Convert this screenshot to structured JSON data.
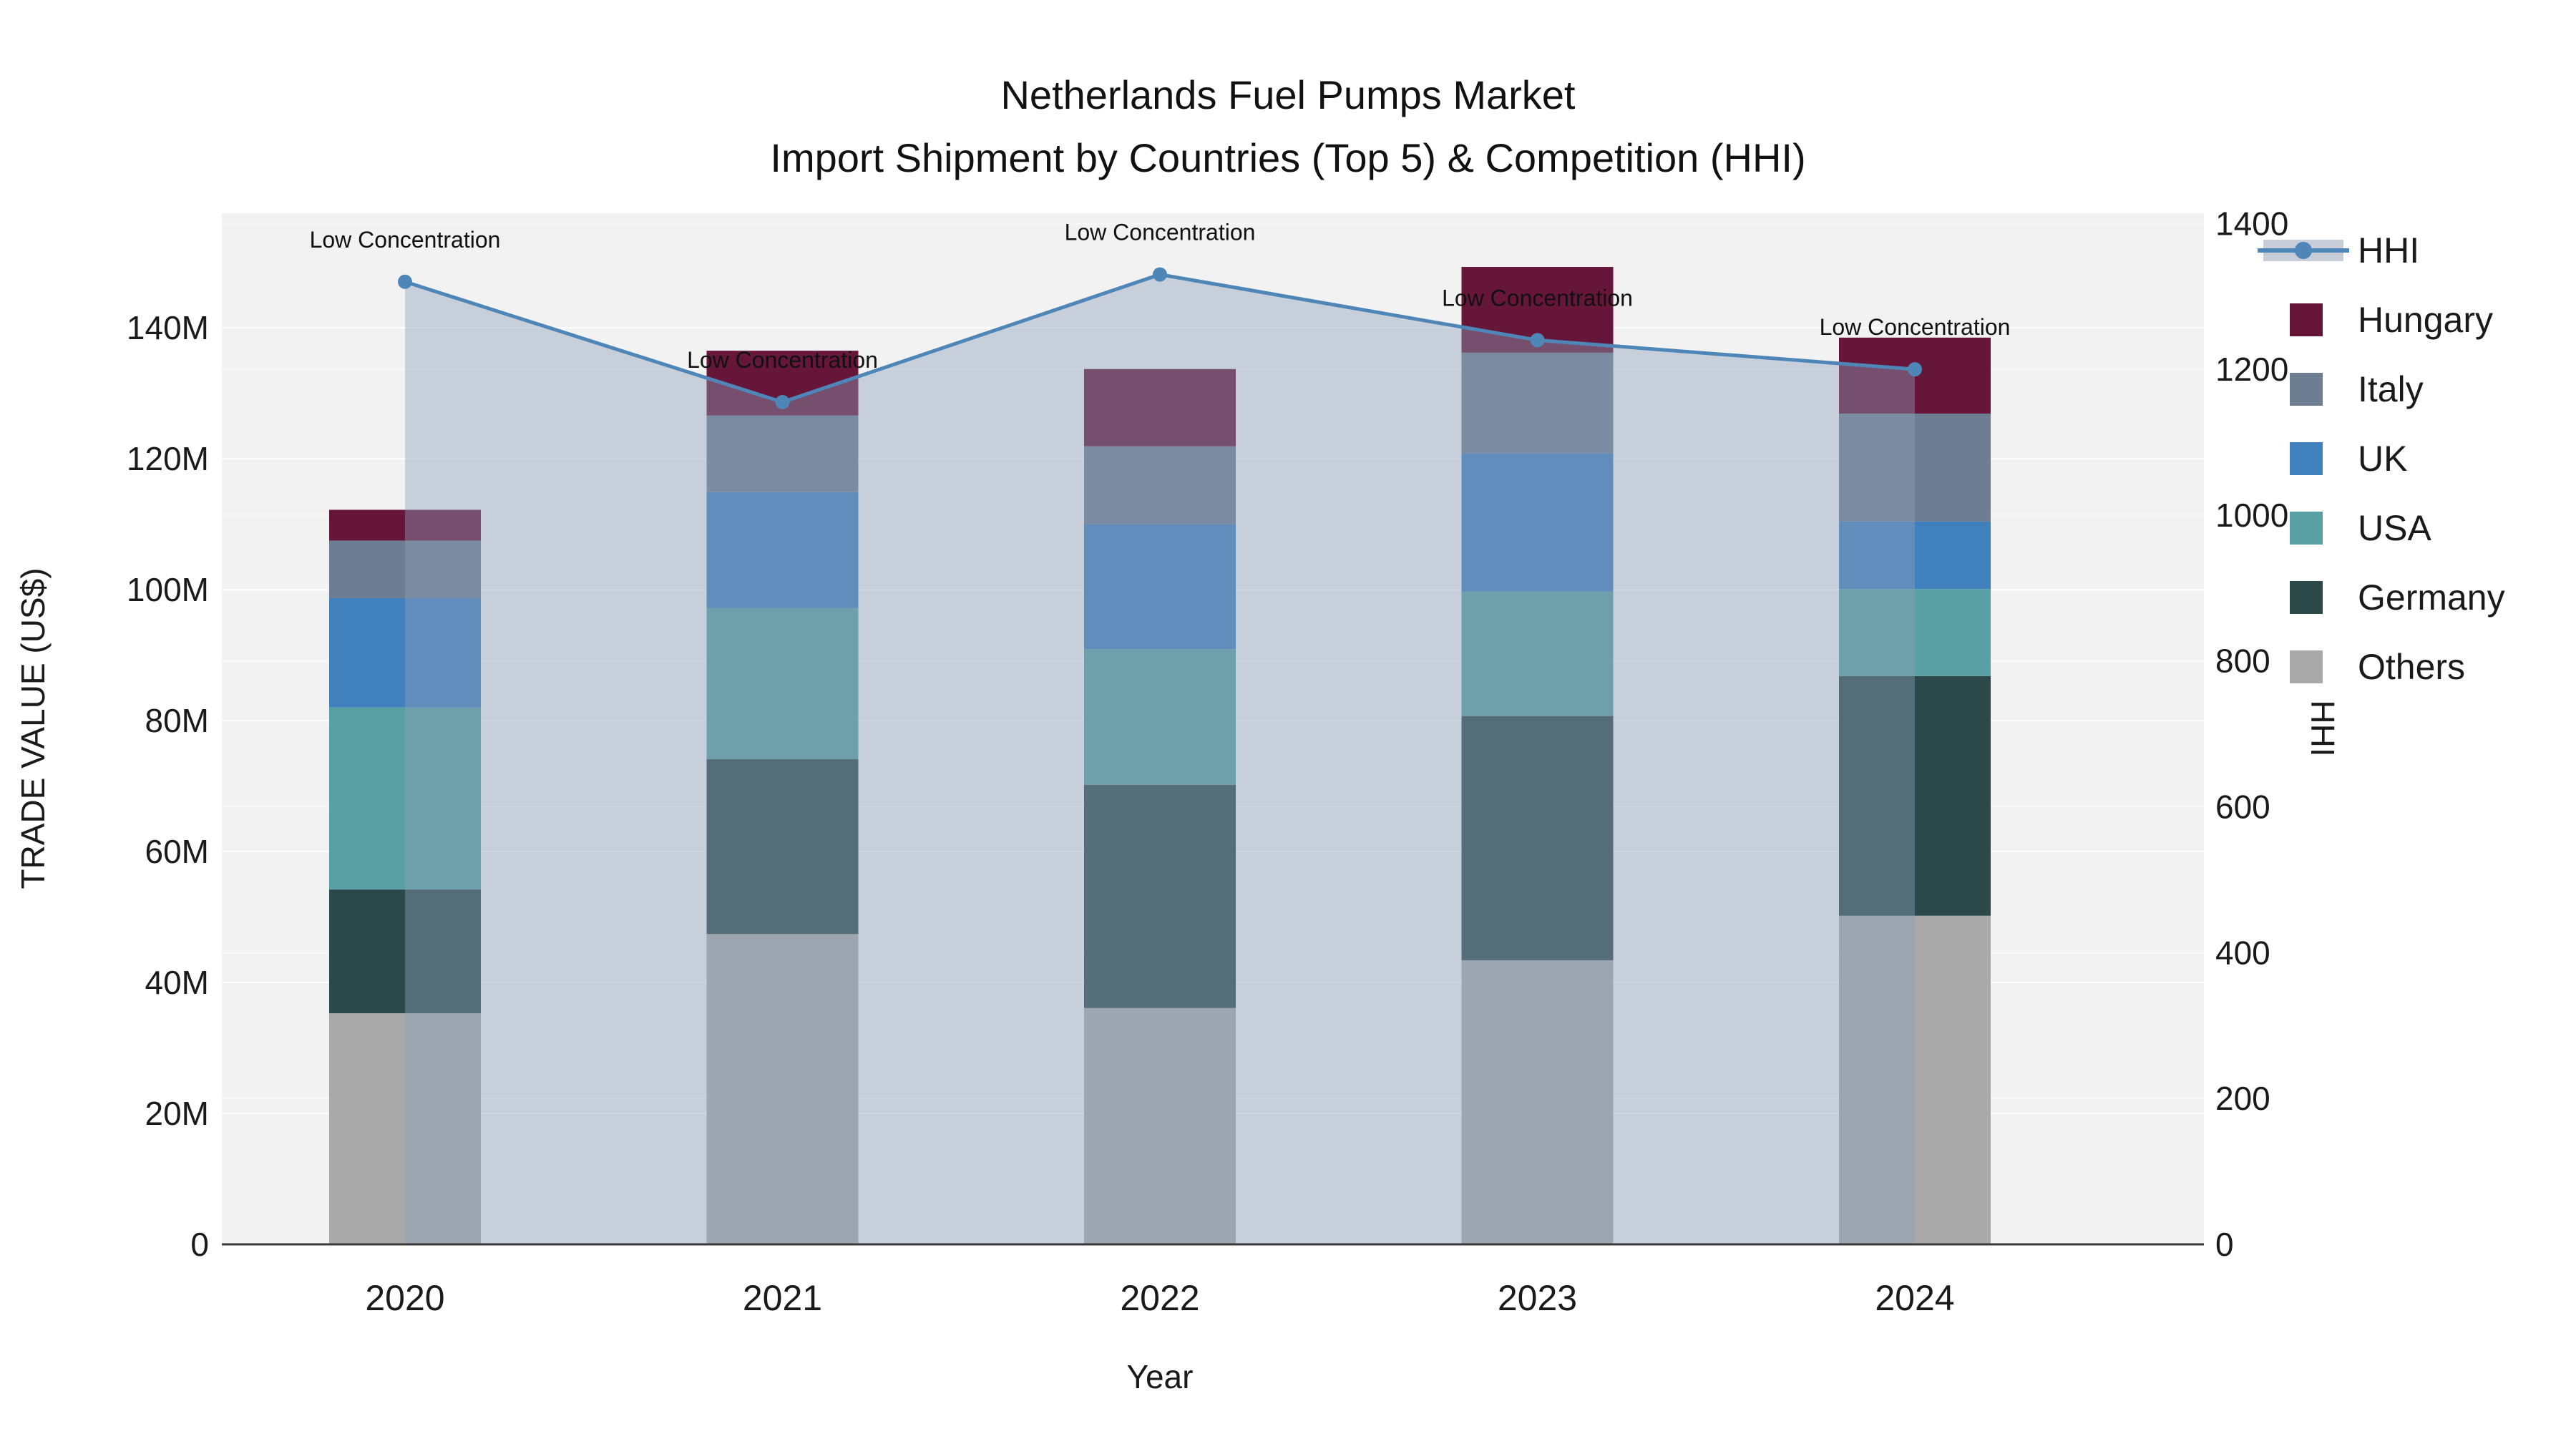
{
  "title": {
    "line1": "Netherlands Fuel Pumps Market",
    "line2": "Import Shipment by Countries (Top 5) & Competition (HHI)"
  },
  "chart_data": {
    "type": "combo-stacked-bar-line",
    "categories": [
      "2020",
      "2021",
      "2022",
      "2023",
      "2024"
    ],
    "xlabel": "Year",
    "ylabel_left": "TRADE VALUE (US$)",
    "ylabel_right": "HHI",
    "ylim_left": [
      0,
      157.5
    ],
    "ylim_right": [
      0,
      1414
    ],
    "grid": true,
    "legend_position": "right-outside",
    "plot_bg": "#f2f2f2",
    "gridline_color": "#ffffff",
    "axis_line_color": "#3a3a3a",
    "text_color": "#1a1a1a",
    "yticks_left": [
      {
        "v": 0,
        "label": "0"
      },
      {
        "v": 20,
        "label": "20M"
      },
      {
        "v": 40,
        "label": "40M"
      },
      {
        "v": 60,
        "label": "60M"
      },
      {
        "v": 80,
        "label": "80M"
      },
      {
        "v": 100,
        "label": "100M"
      },
      {
        "v": 120,
        "label": "120M"
      },
      {
        "v": 140,
        "label": "140M"
      }
    ],
    "yticks_right": [
      {
        "v": 0,
        "label": "0"
      },
      {
        "v": 200,
        "label": "200"
      },
      {
        "v": 400,
        "label": "400"
      },
      {
        "v": 600,
        "label": "600"
      },
      {
        "v": 800,
        "label": "800"
      },
      {
        "v": 1000,
        "label": "1000"
      },
      {
        "v": 1200,
        "label": "1200"
      },
      {
        "v": 1400,
        "label": "1400"
      }
    ],
    "bar_series": [
      {
        "name": "Others",
        "color": "#aaa9a9",
        "values": [
          35.3,
          47.4,
          36.1,
          43.4,
          50.2
        ]
      },
      {
        "name": "Germany",
        "color": "#2b4949",
        "values": [
          18.9,
          26.7,
          34.1,
          37.3,
          36.6
        ]
      },
      {
        "name": "USA",
        "color": "#58a0a3",
        "values": [
          27.8,
          23.1,
          20.7,
          19.0,
          13.3
        ]
      },
      {
        "name": "UK",
        "color": "#4080bd",
        "values": [
          16.7,
          17.7,
          19.1,
          21.1,
          10.3
        ]
      },
      {
        "name": "Italy",
        "color": "#6e7e92",
        "values": [
          8.8,
          11.7,
          11.9,
          15.4,
          16.5
        ]
      },
      {
        "name": "Hungary",
        "color": "#661638",
        "values": [
          4.7,
          9.9,
          11.8,
          13.1,
          11.6
        ]
      }
    ],
    "bar_totals": [
      112.2,
      136.5,
      133.7,
      149.3,
      138.5
    ],
    "line_series": {
      "name": "HHI",
      "values": [
        1320,
        1155,
        1330,
        1240,
        1200
      ],
      "color": "#4e86b8",
      "area_fill": "rgba(141,159,186,0.42)",
      "legend_band_color": "#c6cdd9"
    },
    "annotations": [
      {
        "x": "2020",
        "text": "Low Concentration"
      },
      {
        "x": "2021",
        "text": "Low Concentration"
      },
      {
        "x": "2022",
        "text": "Low Concentration"
      },
      {
        "x": "2023",
        "text": "Low Concentration"
      },
      {
        "x": "2024",
        "text": "Low Concentration"
      }
    ]
  }
}
